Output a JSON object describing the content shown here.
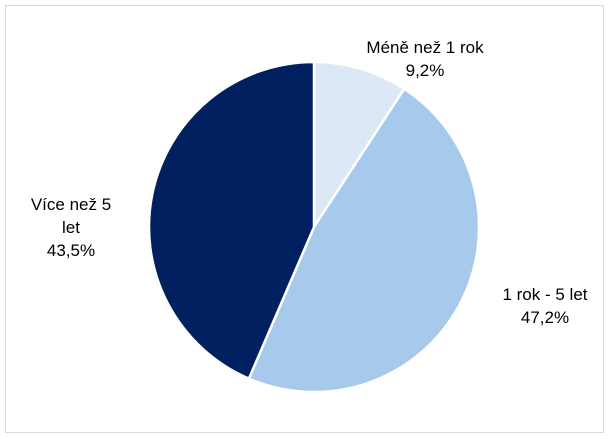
{
  "chart_data": {
    "type": "pie",
    "title": "",
    "start_angle_deg": 0,
    "direction": "clockwise",
    "slices": [
      {
        "name": "Méně než 1 rok",
        "value": 9.2,
        "value_label": "9,2%",
        "label_lines": [
          "Méně než 1 rok"
        ],
        "color": "#dce8f6"
      },
      {
        "name": "1 rok - 5 let",
        "value": 47.2,
        "value_label": "47,2%",
        "label_lines": [
          "1 rok - 5 let"
        ],
        "color": "#a7c9eb"
      },
      {
        "name": "Více než 5 let",
        "value": 43.5,
        "value_label": "43,5%",
        "label_lines": [
          "Více než 5",
          "let"
        ],
        "color": "#002060"
      }
    ],
    "legend": "none",
    "slice_border_color": "#ffffff"
  }
}
